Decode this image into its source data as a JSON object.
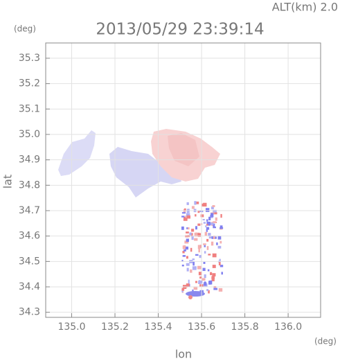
{
  "chart_data": {
    "type": "map",
    "title": "2013/05/29 23:39:14",
    "subtitle": "ALT(km) 2.0",
    "y_unit": "(deg)",
    "x_unit": "(deg)",
    "ylabel": "lat",
    "xlabel": "lon",
    "xlim": [
      134.88,
      136.15
    ],
    "ylim": [
      34.28,
      35.36
    ],
    "xticks": [
      {
        "value": 135,
        "label": "135.0"
      },
      135.2,
      135.4,
      135.6,
      135.8,
      {
        "value": 136,
        "label": "136.0"
      }
    ],
    "yticks": [
      34.3,
      34.4,
      34.5,
      34.6,
      34.7,
      34.8,
      34.9,
      {
        "value": 35,
        "label": "35.0"
      },
      35.1,
      35.2,
      35.3
    ],
    "grid": true
  }
}
